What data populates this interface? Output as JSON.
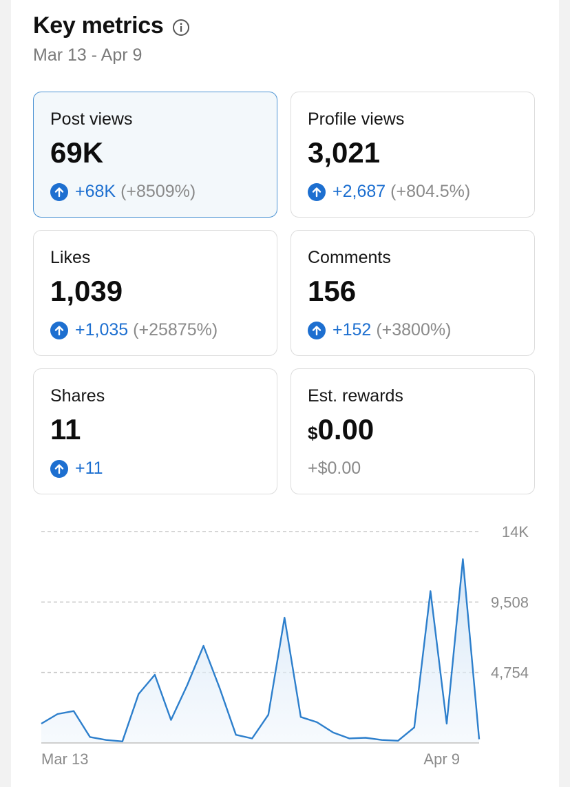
{
  "header": {
    "title": "Key metrics",
    "date_range": "Mar 13 - Apr 9"
  },
  "cards": [
    {
      "label": "Post views",
      "value": "69K",
      "delta": "+68K",
      "pct": "(+8509%)"
    },
    {
      "label": "Profile views",
      "value": "3,021",
      "delta": "+2,687",
      "pct": "(+804.5%)"
    },
    {
      "label": "Likes",
      "value": "1,039",
      "delta": "+1,035",
      "pct": "(+25875%)"
    },
    {
      "label": "Comments",
      "value": "156",
      "delta": "+152",
      "pct": "(+3800%)"
    },
    {
      "label": "Shares",
      "value": "11",
      "delta": "+11"
    },
    {
      "label": "Est. rewards",
      "currency": "$",
      "value": "0.00",
      "change": "+$0.00"
    }
  ],
  "colors": {
    "accent": "#1d6fd0",
    "line": "#2d7fcc",
    "selected_bg": "#f3f8fb",
    "selected_border": "#4c93d3"
  },
  "chart_data": {
    "type": "area",
    "series_for": "Post views",
    "x_tick_labels": [
      "Mar 13",
      "Apr 9"
    ],
    "y_tick_labels": [
      "14K",
      "9,508",
      "4,754"
    ],
    "y_ticks": [
      14262,
      9508,
      4754
    ],
    "ylim": [
      0,
      14262
    ],
    "grid": true,
    "values": [
      1300,
      1950,
      2150,
      400,
      200,
      100,
      3300,
      4600,
      1550,
      3900,
      6550,
      3700,
      550,
      300,
      1900,
      8450,
      1750,
      1400,
      700,
      300,
      350,
      200,
      150,
      1050,
      10250,
      1300,
      12400,
      250
    ]
  }
}
